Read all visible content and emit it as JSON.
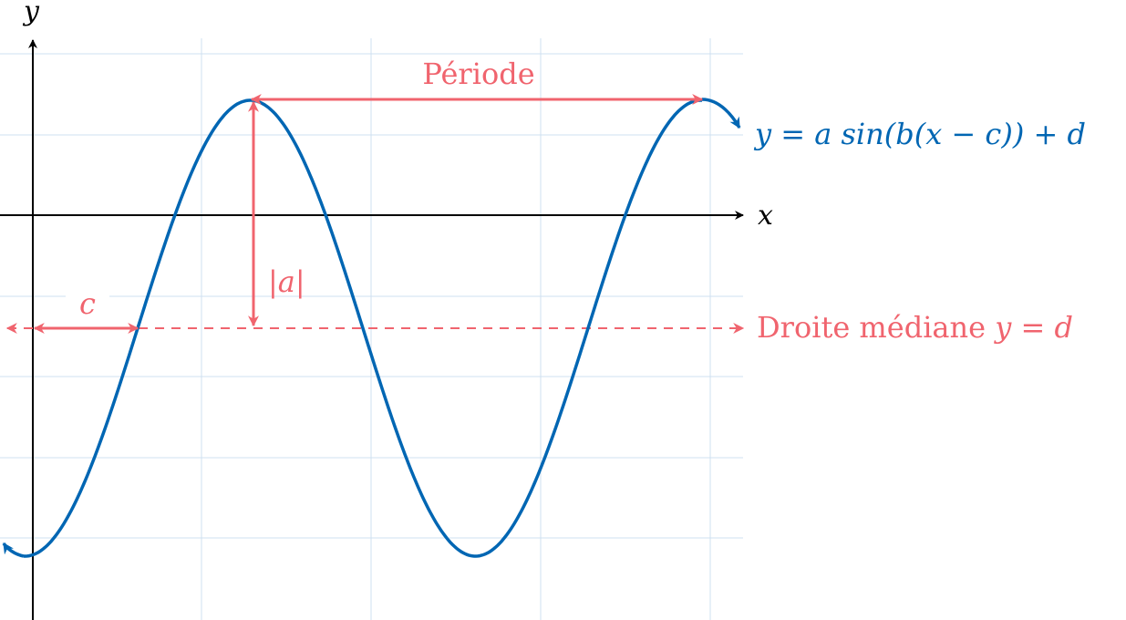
{
  "colors": {
    "curve": "#0066b3",
    "annotation": "#f0646e",
    "axis": "#000000",
    "grid": "#cfe0f0"
  },
  "axes": {
    "x_label": "x",
    "y_label": "y"
  },
  "labels": {
    "equation": "y = a sin(b(x − c)) + d",
    "period": "Période",
    "amplitude": "|a|",
    "phase_shift": "c",
    "midline_text": "Droite médiane ",
    "midline_math": "y = d"
  }
}
